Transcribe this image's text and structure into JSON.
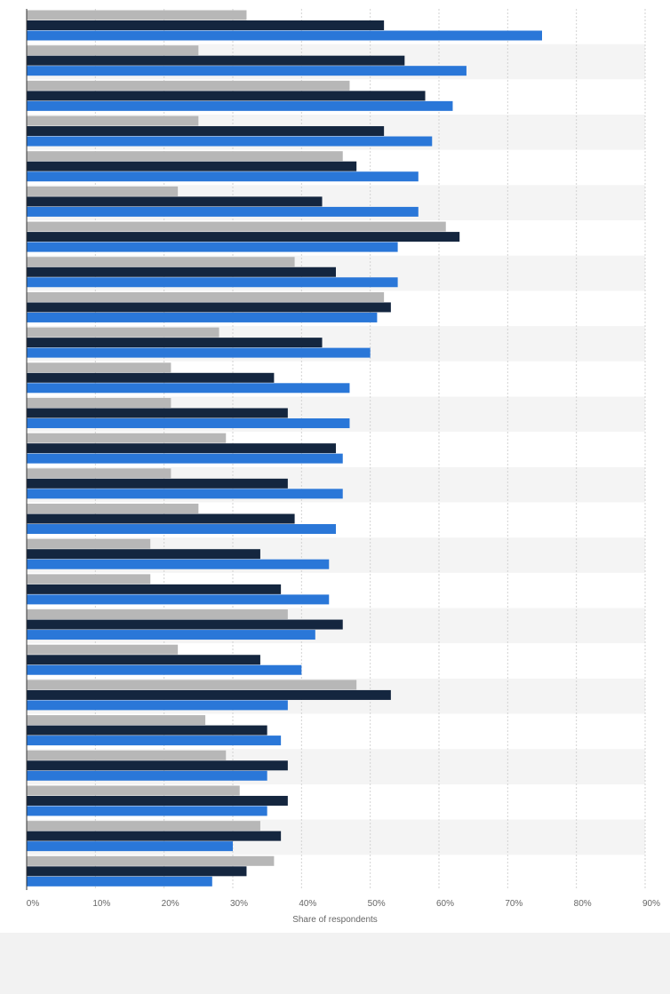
{
  "chart_data": {
    "type": "bar",
    "orientation": "horizontal",
    "xlabel": "Share of respondents",
    "xlim": [
      0,
      90
    ],
    "x_ticks": [
      "0%",
      "10%",
      "20%",
      "30%",
      "40%",
      "50%",
      "60%",
      "70%",
      "80%",
      "90%"
    ],
    "grid": true,
    "series": [
      {
        "color": "#b7b7b7",
        "values": [
          32,
          25,
          47,
          25,
          46,
          22,
          61,
          39,
          52,
          28,
          21,
          21,
          29,
          21,
          25,
          18,
          18,
          38,
          22,
          48,
          26,
          29,
          31,
          34,
          36
        ]
      },
      {
        "color": "#14263f",
        "values": [
          52,
          55,
          58,
          52,
          48,
          43,
          63,
          45,
          53,
          43,
          36,
          38,
          45,
          38,
          39,
          34,
          37,
          46,
          34,
          53,
          35,
          38,
          38,
          37,
          32
        ]
      },
      {
        "color": "#2a77d8",
        "values": [
          75,
          64,
          62,
          59,
          57,
          57,
          54,
          54,
          51,
          50,
          47,
          47,
          46,
          46,
          45,
          44,
          44,
          42,
          40,
          38,
          37,
          35,
          35,
          30,
          27
        ]
      }
    ]
  }
}
